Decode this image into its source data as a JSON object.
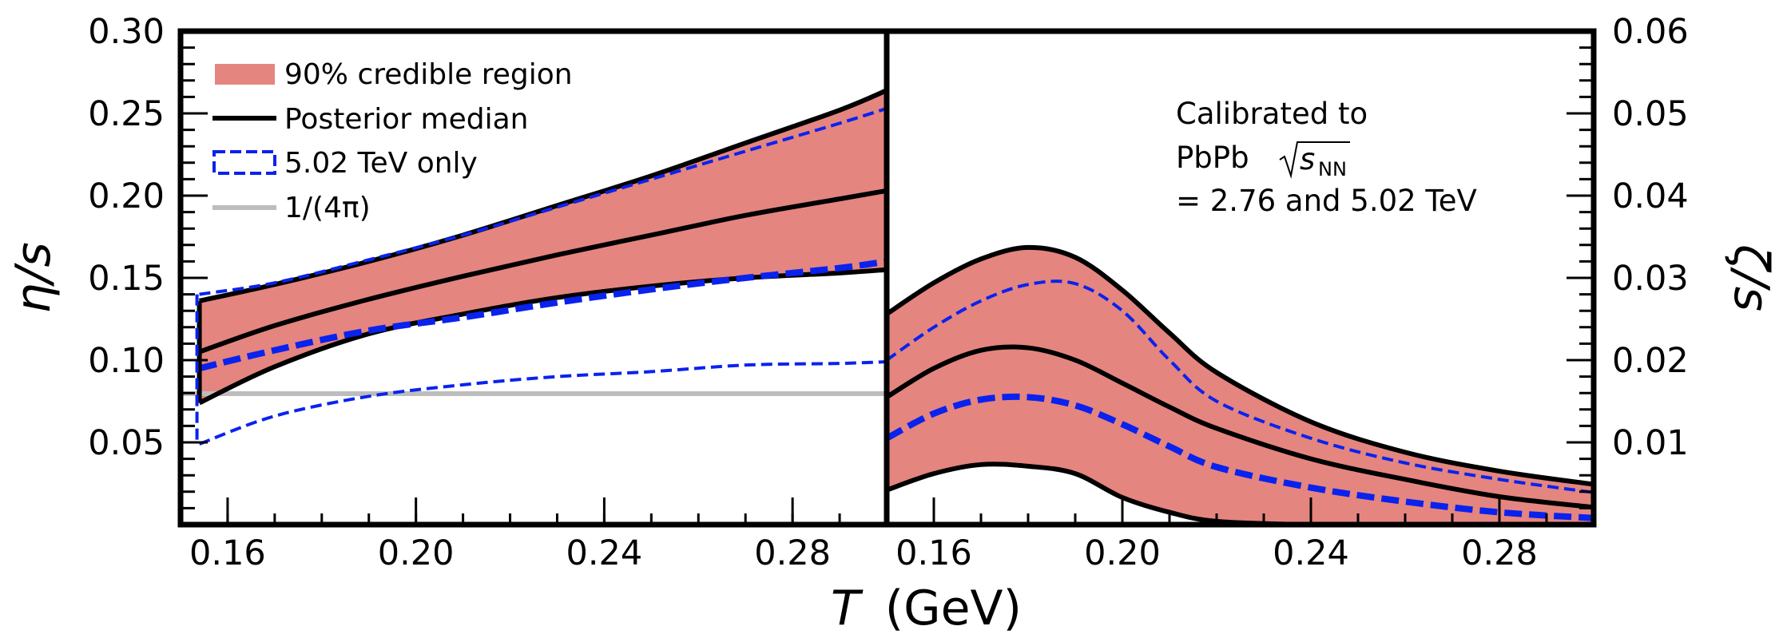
{
  "chart_data": [
    {
      "type": "area",
      "panel": "left",
      "xlabel": "T (GeV)",
      "ylabel": "η/s",
      "xlim": [
        0.15,
        0.3
      ],
      "ylim": [
        0.0,
        0.3
      ],
      "xticks": [
        0.16,
        0.2,
        0.24,
        0.28
      ],
      "xtick_labels": [
        "0.16",
        "0.20",
        "0.24",
        "0.28"
      ],
      "yticks": [
        0.05,
        0.1,
        0.15,
        0.2,
        0.25,
        0.3
      ],
      "ytick_labels": [
        "0.05",
        "0.10",
        "0.15",
        "0.20",
        "0.25",
        "0.30"
      ],
      "legend": {
        "placement": "top-left",
        "entries": [
          {
            "label": "90% credible region",
            "style": "fill"
          },
          {
            "label": "Posterior median",
            "style": "solid-line"
          },
          {
            "label": "5.02 TeV only",
            "style": "dashed-box"
          },
          {
            "label": "1/(4π)",
            "style": "gray-line"
          }
        ]
      },
      "x": [
        0.154,
        0.17,
        0.19,
        0.21,
        0.23,
        0.25,
        0.27,
        0.29,
        0.3
      ],
      "series": [
        {
          "name": "90% credible region upper",
          "values": [
            0.136,
            0.146,
            0.16,
            0.176,
            0.194,
            0.212,
            0.232,
            0.252,
            0.264
          ]
        },
        {
          "name": "Posterior median",
          "values": [
            0.105,
            0.121,
            0.137,
            0.151,
            0.164,
            0.176,
            0.188,
            0.198,
            0.203
          ]
        },
        {
          "name": "90% credible region lower",
          "values": [
            0.074,
            0.096,
            0.116,
            0.128,
            0.138,
            0.145,
            0.15,
            0.153,
            0.155
          ]
        },
        {
          "name": "5.02 TeV only upper",
          "values": [
            0.14,
            0.147,
            0.161,
            0.176,
            0.193,
            0.21,
            0.227,
            0.244,
            0.253
          ]
        },
        {
          "name": "5.02 TeV only lower (median-side)",
          "values": [
            0.095,
            0.106,
            0.118,
            0.126,
            0.135,
            0.143,
            0.15,
            0.156,
            0.16
          ]
        },
        {
          "name": "5.02 TeV only lower bound",
          "values": [
            0.049,
            0.066,
            0.078,
            0.085,
            0.09,
            0.093,
            0.097,
            0.098,
            0.099
          ]
        }
      ],
      "reference_line": {
        "name": "1/(4π)",
        "value": 0.0796
      }
    },
    {
      "type": "area",
      "panel": "right",
      "xlabel": "T (GeV)",
      "ylabel": "ζ/s",
      "xlim": [
        0.15,
        0.3
      ],
      "ylim": [
        0.0,
        0.06
      ],
      "xticks": [
        0.16,
        0.2,
        0.24,
        0.28
      ],
      "xtick_labels": [
        "0.16",
        "0.20",
        "0.24",
        "0.28"
      ],
      "yticks": [
        0.01,
        0.02,
        0.03,
        0.04,
        0.05,
        0.06
      ],
      "ytick_labels": [
        "0.01",
        "0.02",
        "0.03",
        "0.04",
        "0.05",
        "0.06"
      ],
      "annotation": [
        "Calibrated to",
        "PbPb √s_NN",
        "= 2.76 and 5.02 TeV"
      ],
      "x": [
        0.15,
        0.16,
        0.17,
        0.18,
        0.19,
        0.2,
        0.21,
        0.22,
        0.24,
        0.26,
        0.28,
        0.3
      ],
      "series": [
        {
          "name": "90% credible region upper",
          "values": [
            0.0256,
            0.0294,
            0.0323,
            0.0337,
            0.0325,
            0.0285,
            0.0233,
            0.0185,
            0.0125,
            0.0088,
            0.0065,
            0.0049
          ]
        },
        {
          "name": "Posterior median",
          "values": [
            0.0155,
            0.019,
            0.0212,
            0.0215,
            0.02,
            0.0172,
            0.0143,
            0.0117,
            0.008,
            0.0055,
            0.0034,
            0.0021
          ]
        },
        {
          "name": "90% credible region lower",
          "values": [
            0.0042,
            0.0062,
            0.0073,
            0.0071,
            0.0062,
            0.0033,
            0.0015,
            0.0004,
            0.0,
            0.0,
            0.0,
            0.0
          ]
        },
        {
          "name": "5.02 TeV only upper",
          "values": [
            0.02,
            0.024,
            0.0272,
            0.0292,
            0.0293,
            0.026,
            0.02,
            0.015,
            0.0105,
            0.0075,
            0.0055,
            0.0039
          ]
        },
        {
          "name": "5.02 TeV only lower",
          "values": [
            0.0105,
            0.0135,
            0.0152,
            0.0155,
            0.0145,
            0.0122,
            0.0095,
            0.007,
            0.0045,
            0.0028,
            0.0015,
            0.0008
          ]
        }
      ]
    }
  ],
  "labels": {
    "xlabel_italic": "T",
    "xlabel_unit": "(GeV)",
    "ylabel_left": "η/s",
    "ylabel_right": "ζ/s",
    "annot_line1": "Calibrated to",
    "annot_line2_prefix": "PbPb ",
    "annot_line2_s": "s",
    "annot_line2_sub": "NN",
    "annot_line3": "= 2.76 and 5.02 TeV"
  },
  "colors": {
    "band": "#e5857f",
    "median": "#000000",
    "dashed": "#0a22ee",
    "reference": "#bdbdbd"
  }
}
